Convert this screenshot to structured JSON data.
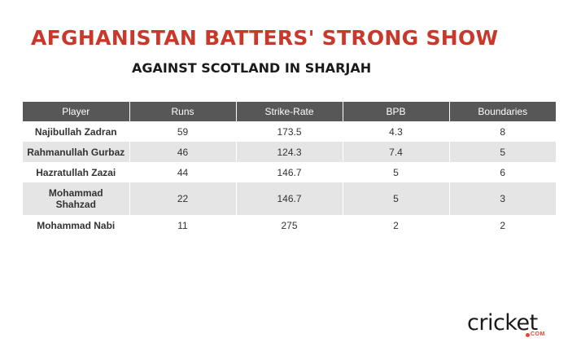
{
  "title": "AFGHANISTAN BATTERS' STRONG SHOW",
  "subtitle": "AGAINST SCOTLAND IN SHARJAH",
  "brand": {
    "logo_text": "cricket",
    "logo_sub": "COM",
    "logo_color": "#e8452c"
  },
  "colors": {
    "title": "#c8392b",
    "header_bg": "#575757",
    "row_alt_bg": "#e5e5e5"
  },
  "chart_data": {
    "type": "table",
    "columns": [
      "Player",
      "Runs",
      "Strike-Rate",
      "BPB",
      "Boundaries"
    ],
    "rows": [
      {
        "player": "Najibullah Zadran",
        "runs": "59",
        "strike_rate": "173.5",
        "bpb": "4.3",
        "boundaries": "8"
      },
      {
        "player": "Rahmanullah Gurbaz",
        "runs": "46",
        "strike_rate": "124.3",
        "bpb": "7.4",
        "boundaries": "5"
      },
      {
        "player": "Hazratullah Zazai",
        "runs": "44",
        "strike_rate": "146.7",
        "bpb": "5",
        "boundaries": "6"
      },
      {
        "player": "Mohammad Shahzad",
        "runs": "22",
        "strike_rate": "146.7",
        "bpb": "5",
        "boundaries": "3"
      },
      {
        "player": "Mohammad Nabi",
        "runs": "11",
        "strike_rate": "275",
        "bpb": "2",
        "boundaries": "2"
      }
    ]
  }
}
